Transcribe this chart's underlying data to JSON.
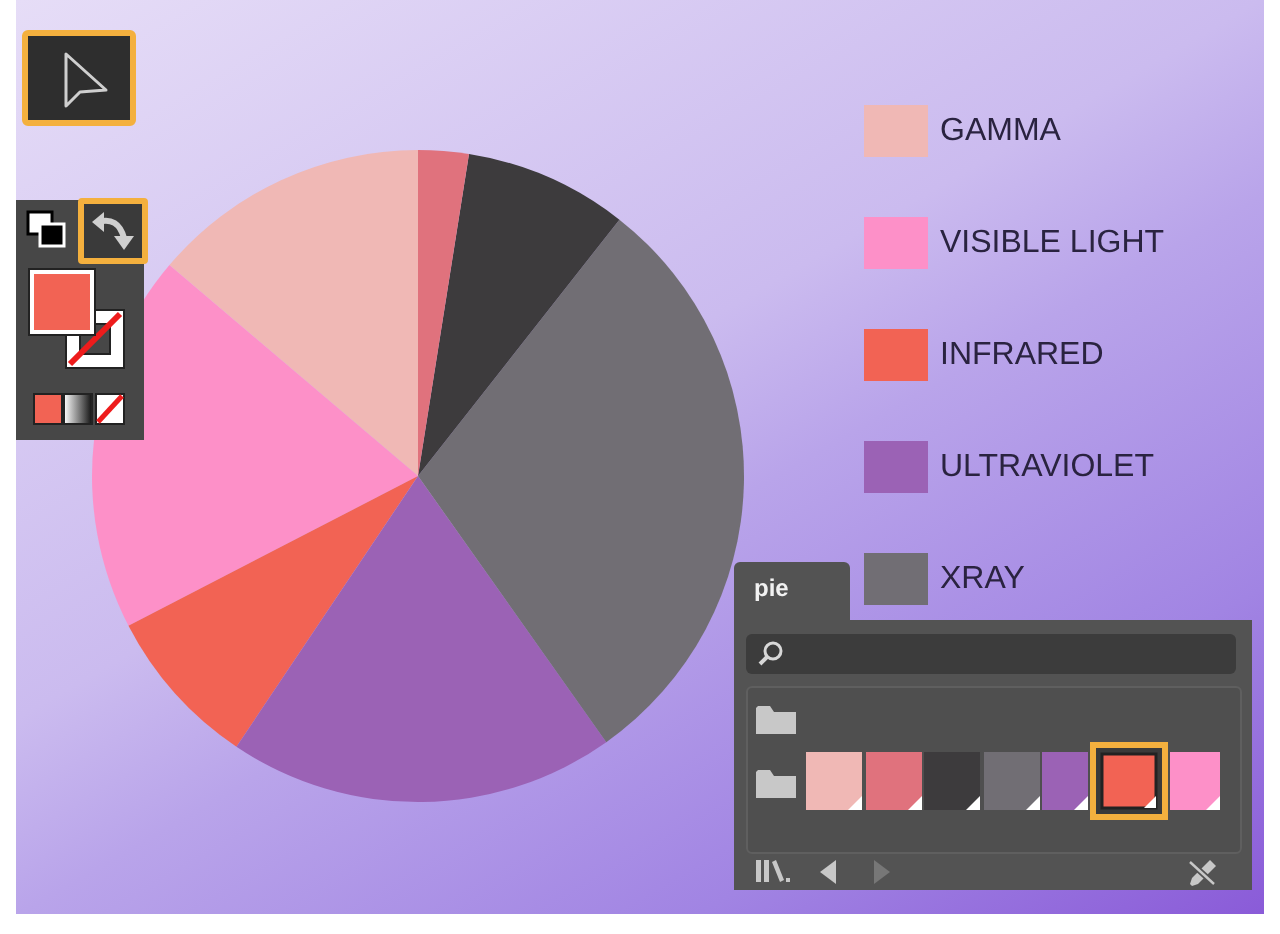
{
  "chart_data": {
    "type": "pie",
    "categories": [
      "GAMMA",
      "VISIBLE LIGHT",
      "INFRARED",
      "ULTRAVIOLET",
      "XRAY",
      null,
      null
    ],
    "values": [
      13.8,
      18.8,
      8.0,
      19.2,
      29.6,
      8.1,
      2.5
    ],
    "colors": [
      "#f0b8b5",
      "#fd90c8",
      "#f26354",
      "#9b62b5",
      "#716e74",
      "#3d3b3d",
      "#e0727d"
    ],
    "legend": "right",
    "annotations": [
      "pie"
    ]
  }
}
